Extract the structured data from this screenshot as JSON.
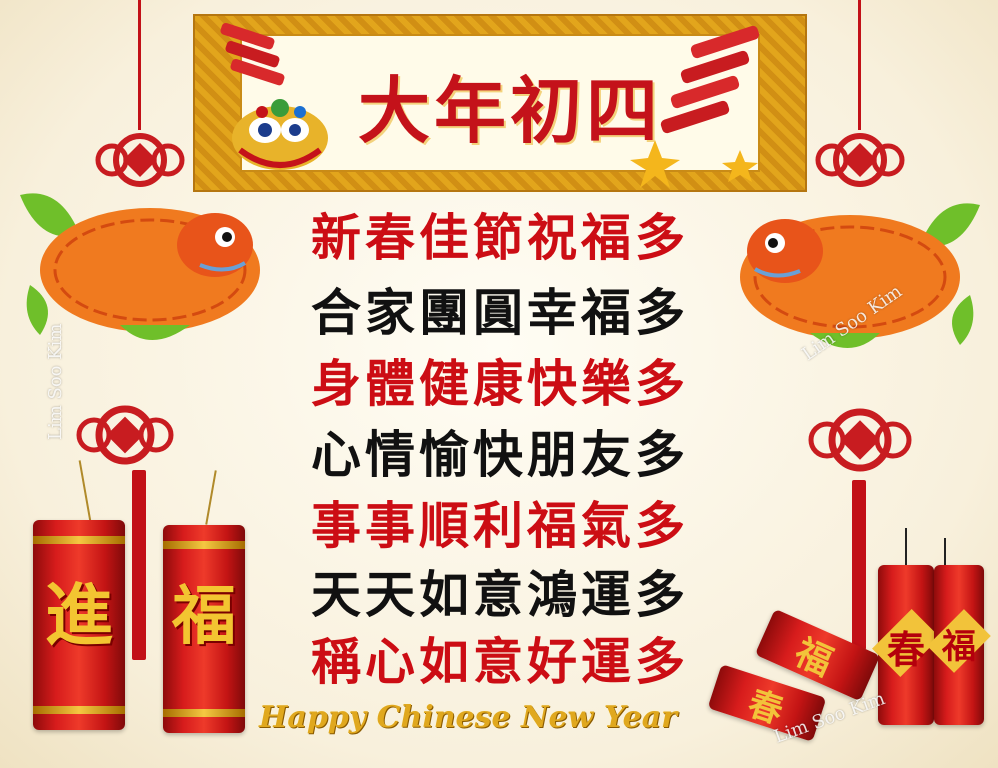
{
  "banner": {
    "title": "大年初四"
  },
  "poem": {
    "lines": [
      {
        "text": "新春佳節祝福多",
        "color": "#cc0d14"
      },
      {
        "text": "合家團圓幸福多",
        "color": "#111111"
      },
      {
        "text": "身體健康快樂多",
        "color": "#cc0d14"
      },
      {
        "text": "心情愉快朋友多",
        "color": "#111111"
      },
      {
        "text": "事事順利福氣多",
        "color": "#cc0d14"
      },
      {
        "text": "天天如意鴻運多",
        "color": "#111111"
      },
      {
        "text": "稱心如意好運多",
        "color": "#cc0d14"
      }
    ]
  },
  "footer": {
    "greeting": "Happy Chinese New Year"
  },
  "watermark": {
    "left": "Lim Soo Kim",
    "right": "Lim Soo Kim",
    "bottom": "Lim Soo Kim"
  },
  "firecrackers": {
    "left_tube_1": "進",
    "left_tube_2": "福",
    "right_tube_1": "春",
    "right_tube_2": "福",
    "lying_1": "福",
    "lying_2": "春"
  },
  "colors": {
    "accent_red": "#cc0d14",
    "gold": "#e0a81e",
    "banner_gold": "#d18f14"
  }
}
